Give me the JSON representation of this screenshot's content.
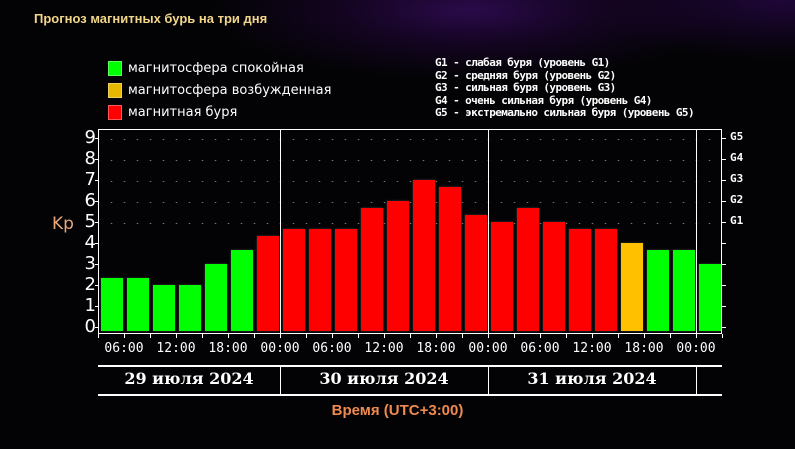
{
  "title": "Прогноз магнитных бурь на три дня",
  "legend": [
    {
      "label": "магнитосфера спокойная",
      "color": "#00ff00"
    },
    {
      "label": "магнитосфера возбужденная",
      "color": "#e6b800"
    },
    {
      "label": "магнитная буря",
      "color": "#ff0000"
    }
  ],
  "g_legend": [
    "G1 - слабая буря (уровень G1)",
    "G2 - средняя буря (уровень G2)",
    "G3 - сильная буря (уровень G3)",
    "G4 - очень сильная буря (уровень G4)",
    "G5 - экстремально сильная буря (уровень G5)"
  ],
  "y_label": "Kp",
  "x_label": "Время (UTC+3:00)",
  "y_ticks": [
    "0",
    "1",
    "2",
    "3",
    "4",
    "5",
    "6",
    "7",
    "8",
    "9"
  ],
  "g_ticks": [
    {
      "label": "G1",
      "kp": 5
    },
    {
      "label": "G2",
      "kp": 6
    },
    {
      "label": "G3",
      "kp": 7
    },
    {
      "label": "G4",
      "kp": 8
    },
    {
      "label": "G5",
      "kp": 9
    }
  ],
  "x_ticks": [
    "06:00",
    "12:00",
    "18:00",
    "00:00",
    "06:00",
    "12:00",
    "18:00",
    "00:00",
    "06:00",
    "12:00",
    "18:00",
    "00:00"
  ],
  "dates": [
    "29 июля 2024",
    "30 июля 2024",
    "31 июля 2024"
  ],
  "colors": {
    "quiet": "#00ff00",
    "active": "#ffc000",
    "storm": "#ff0000"
  },
  "chart_data": {
    "type": "bar",
    "title": "Прогноз магнитных бурь на три дня",
    "xlabel": "Время (UTC+3:00)",
    "ylabel": "Kp",
    "ylim": [
      0,
      9
    ],
    "grid": true,
    "legend_position": "top-left",
    "categories": [
      "29.07 03-06",
      "29.07 06-09",
      "29.07 09-12",
      "29.07 12-15",
      "29.07 15-18",
      "29.07 18-21",
      "29.07 21-24",
      "30.07 00-03",
      "30.07 03-06",
      "30.07 06-09",
      "30.07 09-12",
      "30.07 12-15",
      "30.07 15-18",
      "30.07 18-21",
      "30.07 21-24",
      "31.07 00-03",
      "31.07 03-06",
      "31.07 06-09",
      "31.07 09-12",
      "31.07 12-15",
      "31.07 15-18",
      "31.07 18-21",
      "31.07 21-24",
      "01.08 00-03"
    ],
    "values": [
      2.33,
      2.33,
      2.0,
      2.0,
      3.0,
      3.67,
      4.33,
      4.67,
      4.67,
      4.67,
      5.67,
      6.0,
      7.0,
      6.67,
      5.33,
      5.0,
      5.67,
      5.0,
      4.67,
      4.67,
      4.0,
      3.67,
      3.67,
      3.0
    ],
    "bar_status": [
      "quiet",
      "quiet",
      "quiet",
      "quiet",
      "quiet",
      "quiet",
      "storm",
      "storm",
      "storm",
      "storm",
      "storm",
      "storm",
      "storm",
      "storm",
      "storm",
      "storm",
      "storm",
      "storm",
      "storm",
      "storm",
      "active",
      "quiet",
      "quiet",
      "quiet"
    ],
    "secondary_y_ticks": {
      "G1": 5,
      "G2": 6,
      "G3": 7,
      "G4": 8,
      "G5": 9
    },
    "date_labels": [
      "29 июля 2024",
      "30 июля 2024",
      "31 июля 2024"
    ]
  }
}
